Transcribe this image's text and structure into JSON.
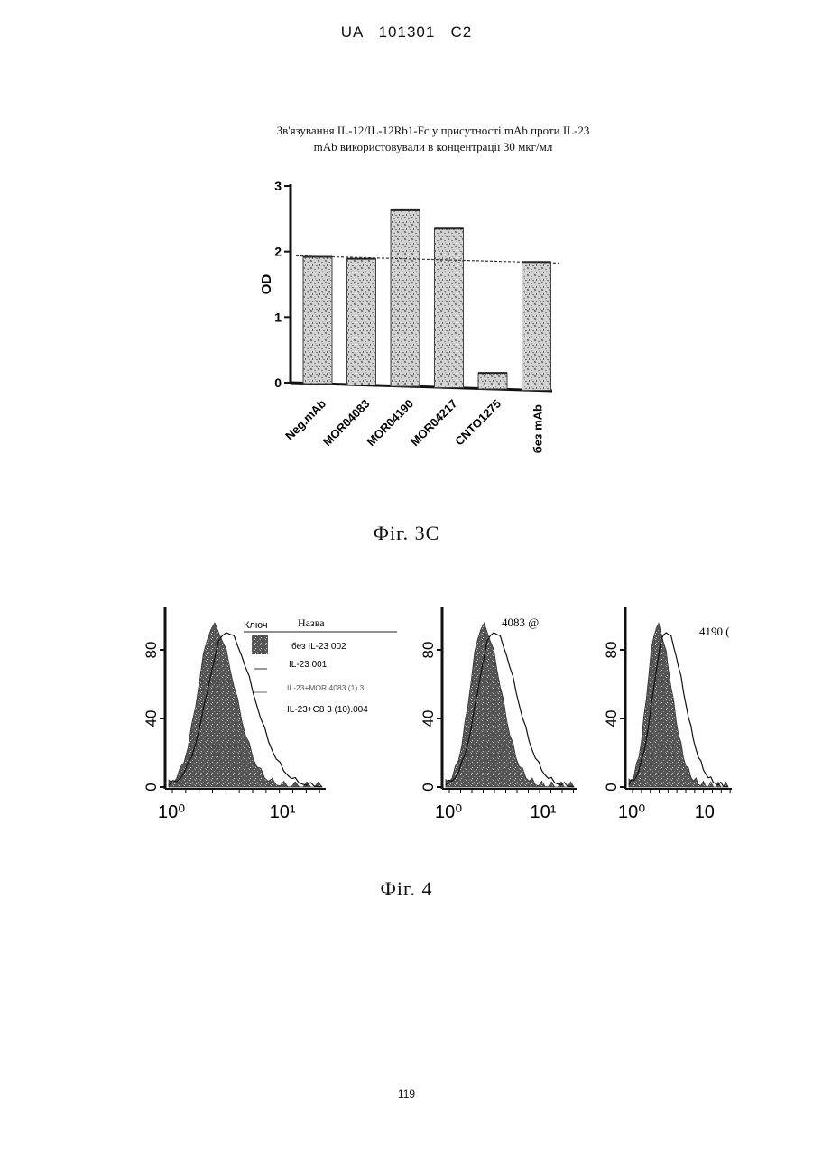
{
  "header": {
    "text": "UA   101301   C2"
  },
  "figure3c": {
    "title_line1": "Зв'язування IL-12/IL-12Rb1-Fc у присутності mAb проти IL-23",
    "title_line2": "mAb використовували в концентрації 30 мкг/мл",
    "caption": "Фіг. 3С"
  },
  "chart_data": [
    {
      "type": "bar",
      "title": "",
      "ylabel": "OD",
      "xlabel": "",
      "ylim": [
        0,
        3
      ],
      "yticks": [
        "0",
        "1",
        "2",
        "3"
      ],
      "categories": [
        "Neg.mAb",
        "MOR04083",
        "MOR04190",
        "MOR04217",
        "CNTO1275",
        "без mAb"
      ],
      "values": [
        1.92,
        1.89,
        2.63,
        2.35,
        0.15,
        1.84
      ],
      "reference_line": 1.88,
      "bar_pattern": "speckled-grey"
    },
    {
      "type": "area",
      "ylabel": "",
      "ylim": [
        0,
        100
      ],
      "yticks": [
        "0",
        "40",
        "80"
      ],
      "xscale": "log",
      "xticks": [
        "10⁰",
        "10¹"
      ],
      "legend": {
        "header_key": "Ключ",
        "header_name": "Назва",
        "entries": [
          "без IL-23 002",
          "IL-23 001",
          "IL-23+MOR 4083 (1) 3",
          "IL-23+C8 3 (10).004"
        ]
      }
    },
    {
      "type": "area",
      "annotation": "4083 @",
      "ylim": [
        0,
        100
      ],
      "yticks": [
        "0",
        "40",
        "80"
      ],
      "xscale": "log",
      "xticks": [
        "10⁰",
        "10¹"
      ]
    },
    {
      "type": "area",
      "annotation": "4190 (",
      "ylim": [
        0,
        100
      ],
      "yticks": [
        "0",
        "40",
        "80"
      ],
      "xscale": "log",
      "xticks": [
        "10⁰",
        "10"
      ]
    }
  ],
  "figure4": {
    "caption": "Фіг. 4"
  },
  "page_number": "119"
}
